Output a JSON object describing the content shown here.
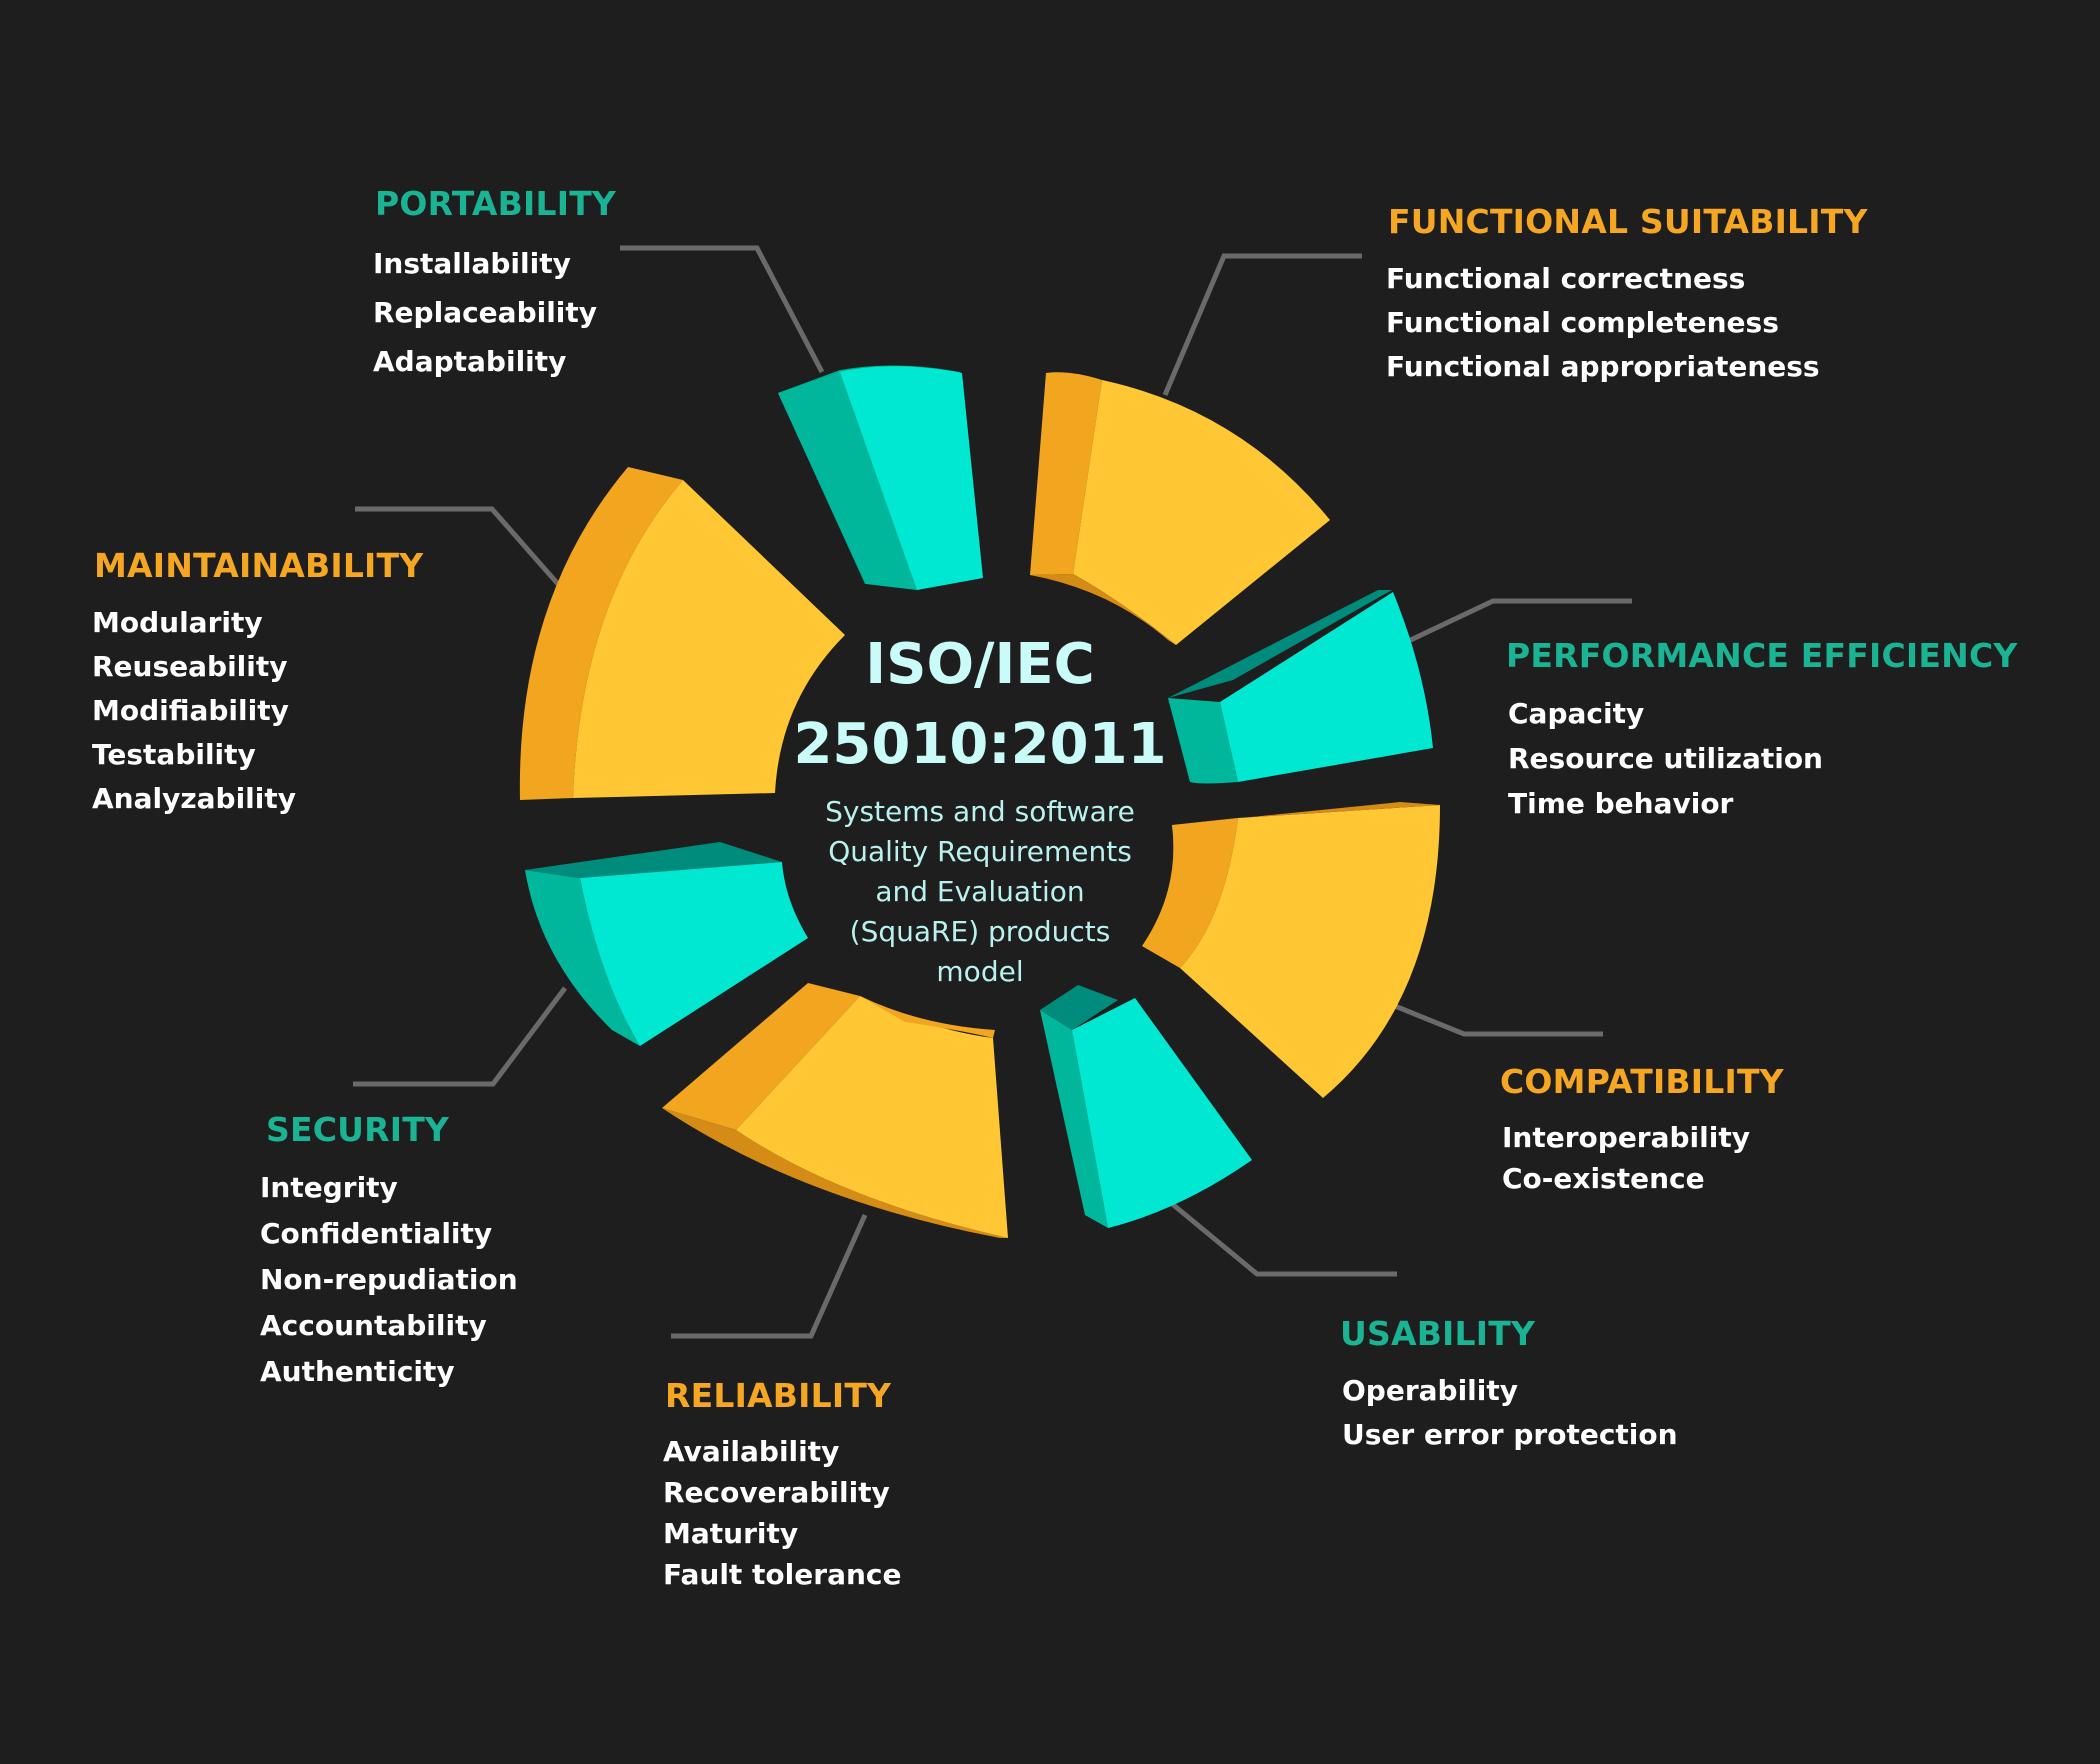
{
  "center": {
    "line1": "ISO/IEC",
    "line2": "25010:2011",
    "sub": [
      "Systems and software",
      "Quality Requirements",
      "and Evaluation",
      "(SquaRE) products",
      "model"
    ]
  },
  "colors": {
    "yellow": "#ffc734",
    "yellow_side": "#f2a51f",
    "cyan": "#00e8d2",
    "cyan_side": "#00b79c",
    "connector": "#6a6a6a",
    "cyan_title": "#1ab394",
    "orange_title": "#f5a623"
  },
  "groups": [
    {
      "id": "portability",
      "title": "PORTABILITY",
      "color": "cyan",
      "items": [
        "Installability",
        "Replaceability",
        "Adaptability"
      ]
    },
    {
      "id": "functional-suitability",
      "title": "FUNCTIONAL SUITABILITY",
      "color": "orange",
      "items": [
        "Functional correctness",
        "Functional completeness",
        "Functional appropriateness"
      ]
    },
    {
      "id": "maintainability",
      "title": "MAINTAINABILITY",
      "color": "orange",
      "items": [
        "Modularity",
        "Reuseability",
        "Modifiability",
        "Testability",
        "Analyzability"
      ]
    },
    {
      "id": "performance-efficiency",
      "title": "PERFORMANCE EFFICIENCY",
      "color": "cyan",
      "items": [
        "Capacity",
        "Resource utilization",
        "Time behavior"
      ]
    },
    {
      "id": "compatibility",
      "title": "COMPATIBILITY",
      "color": "orange",
      "items": [
        "Interoperability",
        "Co-existence"
      ]
    },
    {
      "id": "security",
      "title": "SECURITY",
      "color": "cyan",
      "items": [
        "Integrity",
        "Confidentiality",
        "Non-repudiation",
        "Accountability",
        "Authenticity"
      ]
    },
    {
      "id": "usability",
      "title": "USABILITY",
      "color": "cyan",
      "items": [
        "Operability",
        "User error protection"
      ]
    },
    {
      "id": "reliability",
      "title": "RELIABILITY",
      "color": "orange",
      "items": [
        "Availability",
        "Recoverability",
        "Maturity",
        "Fault tolerance"
      ]
    }
  ]
}
